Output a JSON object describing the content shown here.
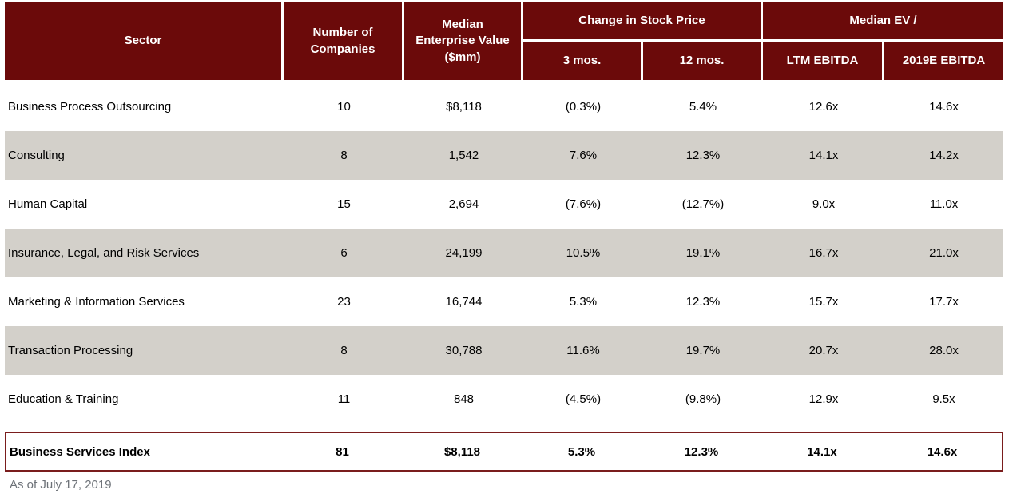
{
  "header": {
    "sector": "Sector",
    "companies": "Number of\nCompanies",
    "median_ev": "Median\nEnterprise Value\n($mm)",
    "change_group": "Change in Stock Price",
    "ev_group": "Median EV /",
    "sub_3mo": "3 mos.",
    "sub_12mo": "12 mos.",
    "sub_ltm": "LTM EBITDA",
    "sub_2019e": "2019E EBITDA"
  },
  "rows": [
    {
      "sector": "Business Process Outsourcing",
      "companies": "10",
      "ev": "$8,118",
      "chg3": "(0.3%)",
      "chg12": "5.4%",
      "ltm": "12.6x",
      "e2019": "14.6x"
    },
    {
      "sector": "Consulting",
      "companies": "8",
      "ev": "1,542",
      "chg3": "7.6%",
      "chg12": "12.3%",
      "ltm": "14.1x",
      "e2019": "14.2x"
    },
    {
      "sector": "Human Capital",
      "companies": "15",
      "ev": "2,694",
      "chg3": "(7.6%)",
      "chg12": "(12.7%)",
      "ltm": "9.0x",
      "e2019": "11.0x"
    },
    {
      "sector": "Insurance, Legal, and Risk Services",
      "companies": "6",
      "ev": "24,199",
      "chg3": "10.5%",
      "chg12": "19.1%",
      "ltm": "16.7x",
      "e2019": "21.0x"
    },
    {
      "sector": "Marketing & Information Services",
      "companies": "23",
      "ev": "16,744",
      "chg3": "5.3%",
      "chg12": "12.3%",
      "ltm": "15.7x",
      "e2019": "17.7x"
    },
    {
      "sector": "Transaction Processing",
      "companies": "8",
      "ev": "30,788",
      "chg3": "11.6%",
      "chg12": "19.7%",
      "ltm": "20.7x",
      "e2019": "28.0x"
    },
    {
      "sector": "Education & Training",
      "companies": "11",
      "ev": "848",
      "chg3": "(4.5%)",
      "chg12": "(9.8%)",
      "ltm": "12.9x",
      "e2019": "9.5x"
    }
  ],
  "summary": {
    "sector": "Business Services Index",
    "companies": "81",
    "ev": "$8,118",
    "chg3": "5.3%",
    "chg12": "12.3%",
    "ltm": "14.1x",
    "e2019": "14.6x"
  },
  "footnote": "As of July 17, 2019",
  "colors": {
    "header_bg": "#6B0A0A",
    "header_text": "#FFFFFF",
    "alt_row_bg": "#D3D0CA",
    "summary_border": "#7A1D1D",
    "footnote_text": "#6D7278"
  },
  "chart_data": {
    "type": "table",
    "title": "",
    "columns": [
      "Sector",
      "Number of Companies",
      "Median Enterprise Value ($mm)",
      "Change in Stock Price — 3 mos.",
      "Change in Stock Price — 12 mos.",
      "Median EV / LTM EBITDA",
      "Median EV / 2019E EBITDA"
    ],
    "rows": [
      [
        "Business Process Outsourcing",
        "10",
        "$8,118",
        "(0.3%)",
        "5.4%",
        "12.6x",
        "14.6x"
      ],
      [
        "Consulting",
        "8",
        "1,542",
        "7.6%",
        "12.3%",
        "14.1x",
        "14.2x"
      ],
      [
        "Human Capital",
        "15",
        "2,694",
        "(7.6%)",
        "(12.7%)",
        "9.0x",
        "11.0x"
      ],
      [
        "Insurance, Legal, and Risk Services",
        "6",
        "24,199",
        "10.5%",
        "19.1%",
        "16.7x",
        "21.0x"
      ],
      [
        "Marketing & Information Services",
        "23",
        "16,744",
        "5.3%",
        "12.3%",
        "15.7x",
        "17.7x"
      ],
      [
        "Transaction Processing",
        "8",
        "30,788",
        "11.6%",
        "19.7%",
        "20.7x",
        "28.0x"
      ],
      [
        "Education & Training",
        "11",
        "848",
        "(4.5%)",
        "(9.8%)",
        "12.9x",
        "9.5x"
      ],
      [
        "Business Services Index",
        "81",
        "$8,118",
        "5.3%",
        "12.3%",
        "14.1x",
        "14.6x"
      ]
    ]
  }
}
